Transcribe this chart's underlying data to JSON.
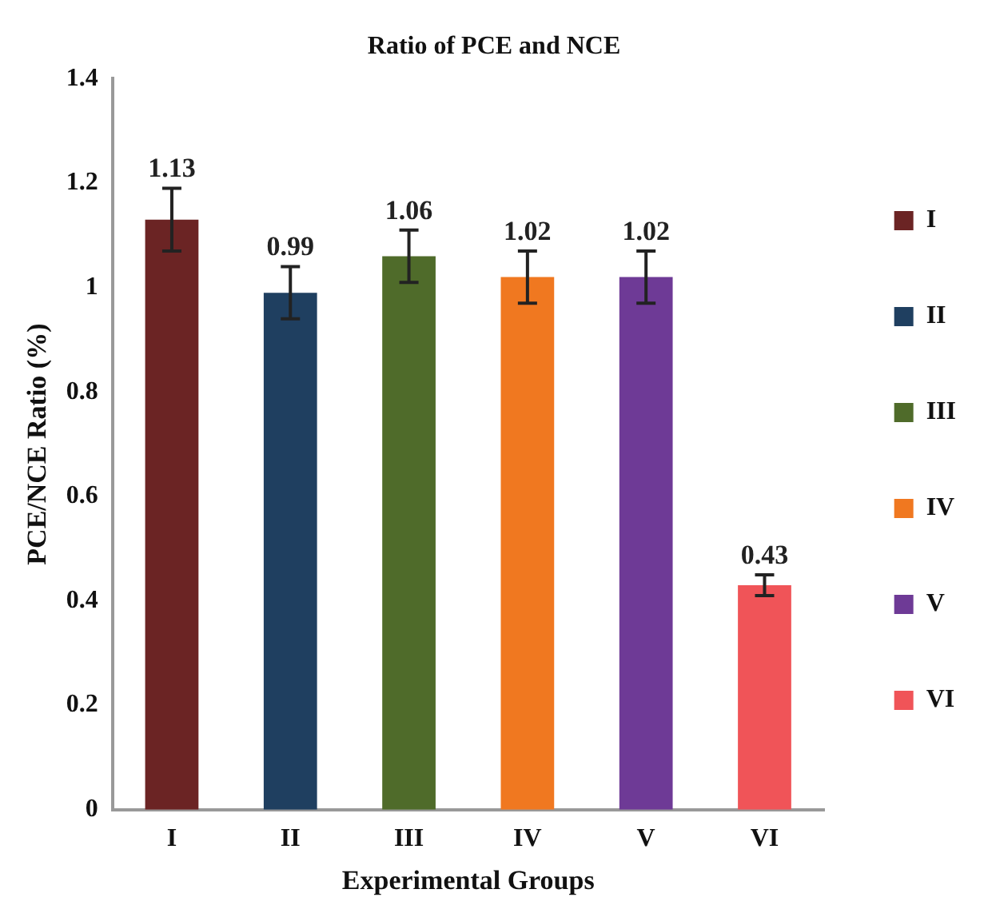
{
  "chart_data": {
    "type": "bar",
    "title": "Ratio of PCE and NCE",
    "xlabel": "Experimental Groups",
    "ylabel": "PCE/NCE Ratio (%)",
    "categories": [
      "I",
      "II",
      "III",
      "IV",
      "V",
      "VI"
    ],
    "series": [
      {
        "name": "I",
        "color": "#6b2424",
        "values": [
          1.13,
          null,
          null,
          null,
          null,
          null
        ],
        "errors": [
          0.06,
          null,
          null,
          null,
          null,
          null
        ]
      },
      {
        "name": "II",
        "color": "#1f3f60",
        "values": [
          null,
          0.99,
          null,
          null,
          null,
          null
        ],
        "errors": [
          null,
          0.05,
          null,
          null,
          null,
          null
        ]
      },
      {
        "name": "III",
        "color": "#4f6b2a",
        "values": [
          null,
          null,
          1.06,
          null,
          null,
          null
        ],
        "errors": [
          null,
          null,
          0.05,
          null,
          null,
          null
        ]
      },
      {
        "name": "IV",
        "color": "#f07820",
        "values": [
          null,
          null,
          null,
          1.02,
          null,
          null
        ],
        "errors": [
          null,
          null,
          null,
          0.05,
          null,
          null
        ]
      },
      {
        "name": "V",
        "color": "#6e3a96",
        "values": [
          null,
          null,
          null,
          null,
          1.02,
          null
        ],
        "errors": [
          null,
          null,
          null,
          null,
          0.05,
          null
        ]
      },
      {
        "name": "VI",
        "color": "#f05458",
        "values": [
          null,
          null,
          null,
          null,
          null,
          0.43
        ],
        "errors": [
          null,
          null,
          null,
          null,
          null,
          0.02
        ]
      }
    ],
    "ylim": [
      0,
      1.4
    ],
    "yticks": [
      0,
      {
        "value": 0.2,
        "label": "0.2"
      },
      {
        "value": 0.4,
        "label": "0.4"
      },
      {
        "value": 0.6,
        "label": "0.6"
      },
      {
        "value": 0.8,
        "label": "0.8"
      },
      1,
      {
        "value": 1.2,
        "label": "1.2"
      },
      {
        "value": 1.4,
        "label": "1.4"
      }
    ],
    "data_labels": true,
    "grid": false,
    "legend": "right"
  }
}
